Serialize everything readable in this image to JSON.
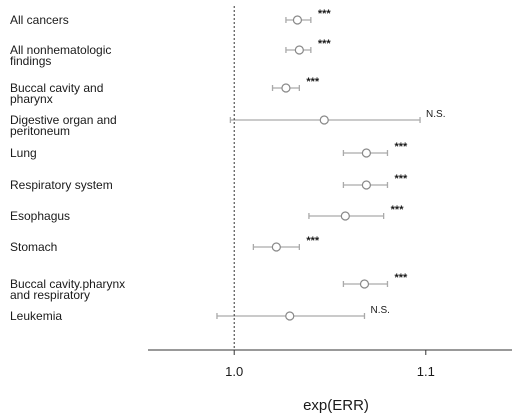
{
  "chart_data": {
    "type": "forest",
    "title": "",
    "xlabel": "exp(ERR)",
    "ylabel": "",
    "x_range": [
      0.955,
      1.145
    ],
    "x_ticks": [
      {
        "value": 1.0,
        "label": "1.0"
      },
      {
        "value": 1.1,
        "label": "1.1"
      }
    ],
    "reference_line": 1.0,
    "grid": false,
    "rows": [
      {
        "label_lines": [
          "All cancers"
        ],
        "estimate": 1.033,
        "ci": [
          1.027,
          1.04
        ],
        "significance": "***"
      },
      {
        "label_lines": [
          "All nonhematologic",
          "findings"
        ],
        "estimate": 1.034,
        "ci": [
          1.027,
          1.04
        ],
        "significance": "***"
      },
      {
        "label_lines": [
          "Buccal cavity and",
          "pharynx"
        ],
        "estimate": 1.027,
        "ci": [
          1.02,
          1.034
        ],
        "significance": "***"
      },
      {
        "label_lines": [
          "Digestive organ and",
          "peritoneum"
        ],
        "estimate": 1.047,
        "ci": [
          0.998,
          1.097
        ],
        "significance": "N.S."
      },
      {
        "label_lines": [
          "Lung"
        ],
        "estimate": 1.069,
        "ci": [
          1.057,
          1.08
        ],
        "significance": "***"
      },
      {
        "label_lines": [
          "Respiratory system"
        ],
        "estimate": 1.069,
        "ci": [
          1.057,
          1.08
        ],
        "significance": "***"
      },
      {
        "label_lines": [
          "Esophagus"
        ],
        "estimate": 1.058,
        "ci": [
          1.039,
          1.078
        ],
        "significance": "***"
      },
      {
        "label_lines": [
          "Stomach"
        ],
        "estimate": 1.022,
        "ci": [
          1.01,
          1.034
        ],
        "significance": "***"
      },
      {
        "label_lines": [
          "Buccal cavity.pharynx",
          "and respiratory"
        ],
        "estimate": 1.068,
        "ci": [
          1.057,
          1.08
        ],
        "significance": "***"
      },
      {
        "label_lines": [
          "Leukemia"
        ],
        "estimate": 1.029,
        "ci": [
          0.991,
          1.068
        ],
        "significance": "N.S."
      }
    ],
    "colors": {
      "marker_fill": "#ffffff",
      "marker_stroke": "#888888",
      "ci_line": "#aaaaaa",
      "axis": "#333333"
    }
  }
}
